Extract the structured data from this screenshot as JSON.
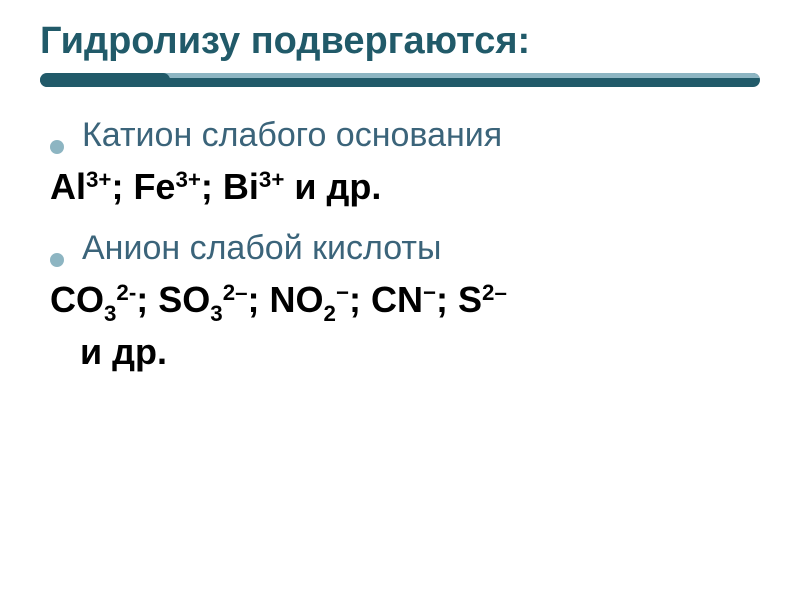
{
  "colors": {
    "title": "#215a69",
    "underline_main": "#215a69",
    "underline_light": "#8db5c2",
    "bullet_dot": "#8db5c2",
    "bullet_text": "#3b647a",
    "formula_text": "#000000",
    "background": "#ffffff"
  },
  "layout": {
    "underline_full_width": 720,
    "underline_narrow_width": 130,
    "underline_height": 14
  },
  "title": "Гидролизу подвергаются:",
  "items": [
    {
      "heading": "Катион слабого основания",
      "formula_tokens": [
        {
          "t": "text",
          "v": "Al"
        },
        {
          "t": "sup",
          "v": "3+"
        },
        {
          "t": "text",
          "v": "; Fe"
        },
        {
          "t": "sup",
          "v": "3+"
        },
        {
          "t": "text",
          "v": "; Bi"
        },
        {
          "t": "sup",
          "v": "3+"
        },
        {
          "t": "text",
          "v": "  и др."
        }
      ]
    },
    {
      "heading": "Анион слабой кислоты",
      "formula_tokens": [
        {
          "t": "text",
          "v": "CO"
        },
        {
          "t": "sub",
          "v": "3"
        },
        {
          "t": "sup",
          "v": "2-"
        },
        {
          "t": "text",
          "v": "; SO"
        },
        {
          "t": "sub",
          "v": "3"
        },
        {
          "t": "sup",
          "v": "2–"
        },
        {
          "t": "text",
          "v": "; NO"
        },
        {
          "t": "sub",
          "v": "2"
        },
        {
          "t": "sup",
          "v": "−"
        },
        {
          "t": "text",
          "v": "; CN"
        },
        {
          "t": "sup",
          "v": "−"
        },
        {
          "t": "text",
          "v": "; S"
        },
        {
          "t": "sup",
          "v": "2–"
        },
        {
          "t": "text",
          "v": " и др."
        }
      ],
      "formula_indent_text": "   "
    }
  ]
}
